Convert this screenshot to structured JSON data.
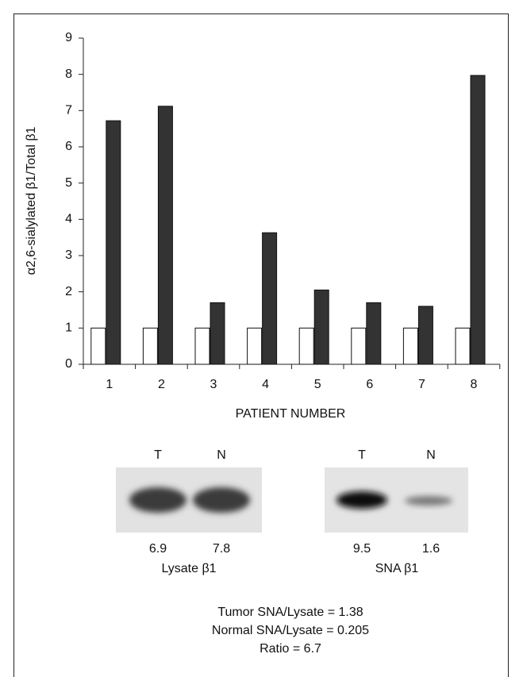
{
  "chart_data": {
    "type": "bar",
    "y_label": "α2,6-sialylated β1/Total β1",
    "x_label": "PATIENT NUMBER",
    "categories": [
      "1",
      "2",
      "3",
      "4",
      "5",
      "6",
      "7",
      "8"
    ],
    "series": [
      {
        "color": "#ffffff",
        "values": [
          1,
          1,
          1,
          1,
          1,
          1,
          1,
          1
        ]
      },
      {
        "color": "#333333",
        "values": [
          6.72,
          7.12,
          1.7,
          3.63,
          2.05,
          1.7,
          1.6,
          7.97
        ]
      }
    ],
    "ylim": [
      0,
      9
    ],
    "yticks": [
      0,
      1,
      2,
      3,
      4,
      5,
      6,
      7,
      8,
      9
    ]
  },
  "blots": [
    {
      "lanes": [
        "T",
        "N"
      ],
      "values": [
        "6.9",
        "7.8"
      ],
      "caption": "Lysate β1"
    },
    {
      "lanes": [
        "T",
        "N"
      ],
      "values": [
        "9.5",
        "1.6"
      ],
      "caption": "SNA β1"
    }
  ],
  "summary": [
    "Tumor SNA/Lysate = 1.38",
    "Normal SNA/Lysate = 0.205",
    "Ratio = 6.7"
  ]
}
